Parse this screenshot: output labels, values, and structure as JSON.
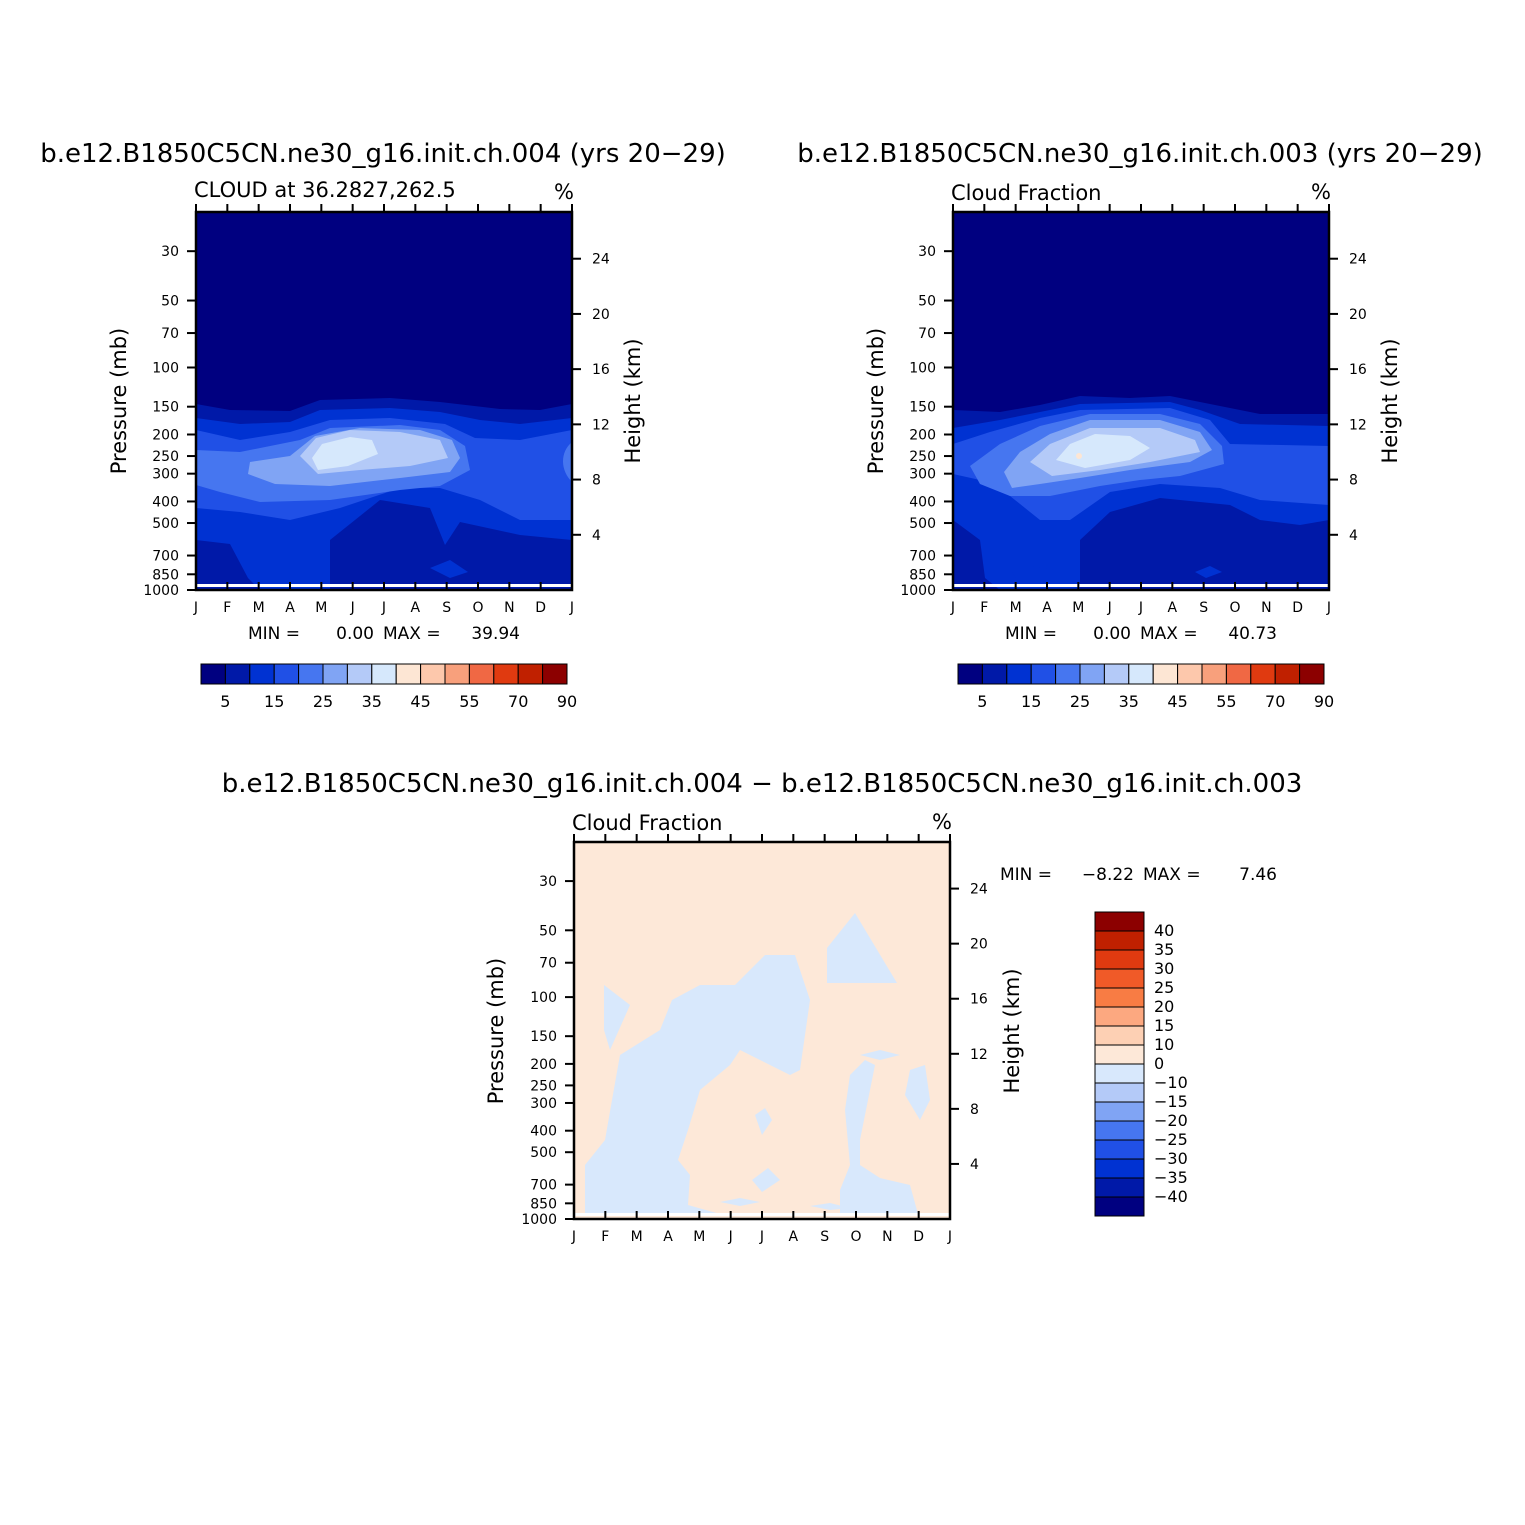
{
  "chart_data": [
    {
      "type": "contour",
      "title": "b.e12.B1850C5CN.ne30_g16.init.ch.004 (yrs 20−29)",
      "subtitle_left": "CLOUD at 36.2827,262.5",
      "subtitle_right": "%",
      "ylabel": "Pressure (mb)",
      "ylabel_right": "Height (km)",
      "x_ticks": [
        "J",
        "F",
        "M",
        "A",
        "M",
        "J",
        "J",
        "A",
        "S",
        "O",
        "N",
        "D",
        "J"
      ],
      "y_ticks": [
        "30",
        "50",
        "70",
        "100",
        "150",
        "200",
        "250",
        "300",
        "400",
        "500",
        "700",
        "850",
        "1000"
      ],
      "y_ticks_right": [
        "24",
        "20",
        "16",
        "12",
        "8",
        "4"
      ],
      "ylim_mb": [
        1000,
        20
      ],
      "min_label": "MIN =",
      "min_value": "0.00",
      "max_label": "MAX =",
      "max_value": "39.94",
      "colorbar_labels": [
        "5",
        "15",
        "25",
        "35",
        "45",
        "55",
        "70",
        "90"
      ],
      "colors": [
        "#000080",
        "#0019a8",
        "#0032d2",
        "#2050e6",
        "#4676f0",
        "#80a4f4",
        "#b4caf8",
        "#d6e8fc",
        "#fde6d4",
        "#fdc8ac",
        "#f8a07c",
        "#f06844",
        "#e03a10",
        "#c02000",
        "#8c0000"
      ]
    },
    {
      "type": "contour",
      "title": "b.e12.B1850C5CN.ne30_g16.init.ch.003 (yrs 20−29)",
      "subtitle_left": "Cloud Fraction",
      "subtitle_right": "%",
      "ylabel": "Pressure (mb)",
      "ylabel_right": "Height (km)",
      "x_ticks": [
        "J",
        "F",
        "M",
        "A",
        "M",
        "J",
        "J",
        "A",
        "S",
        "O",
        "N",
        "D",
        "J"
      ],
      "y_ticks": [
        "30",
        "50",
        "70",
        "100",
        "150",
        "200",
        "250",
        "300",
        "400",
        "500",
        "700",
        "850",
        "1000"
      ],
      "y_ticks_right": [
        "24",
        "20",
        "16",
        "12",
        "8",
        "4"
      ],
      "ylim_mb": [
        1000,
        20
      ],
      "min_label": "MIN =",
      "min_value": "0.00",
      "max_label": "MAX =",
      "max_value": "40.73",
      "colorbar_labels": [
        "5",
        "15",
        "25",
        "35",
        "45",
        "55",
        "70",
        "90"
      ],
      "colors": [
        "#000080",
        "#0019a8",
        "#0032d2",
        "#2050e6",
        "#4676f0",
        "#80a4f4",
        "#b4caf8",
        "#d6e8fc",
        "#fde6d4",
        "#fdc8ac",
        "#f8a07c",
        "#f06844",
        "#e03a10",
        "#c02000",
        "#8c0000"
      ]
    },
    {
      "type": "contour",
      "title": "b.e12.B1850C5CN.ne30_g16.init.ch.004 − b.e12.B1850C5CN.ne30_g16.init.ch.003",
      "subtitle_left": "Cloud Fraction",
      "subtitle_right": "%",
      "ylabel": "Pressure (mb)",
      "ylabel_right": "Height (km)",
      "x_ticks": [
        "J",
        "F",
        "M",
        "A",
        "M",
        "J",
        "J",
        "A",
        "S",
        "O",
        "N",
        "D",
        "J"
      ],
      "y_ticks": [
        "30",
        "50",
        "70",
        "100",
        "150",
        "200",
        "250",
        "300",
        "400",
        "500",
        "700",
        "850",
        "1000"
      ],
      "y_ticks_right": [
        "24",
        "20",
        "16",
        "12",
        "8",
        "4"
      ],
      "ylim_mb": [
        1000,
        20
      ],
      "min_label": "MIN =",
      "min_value": "−8.22",
      "max_label": "MAX =",
      "max_value": "7.46",
      "colorbar_labels": [
        "40",
        "35",
        "30",
        "25",
        "20",
        "15",
        "10",
        "0",
        "−10",
        "−15",
        "−20",
        "−25",
        "−30",
        "−35",
        "−40"
      ],
      "colors": [
        "#8c0000",
        "#c02000",
        "#e03a10",
        "#f05a28",
        "#f87c44",
        "#fca880",
        "#fdd0b4",
        "#fde8d8",
        "#d8e8fc",
        "#b4caf8",
        "#80a4f4",
        "#4676f0",
        "#2050e6",
        "#0032d2",
        "#0019a8",
        "#000080"
      ]
    }
  ]
}
